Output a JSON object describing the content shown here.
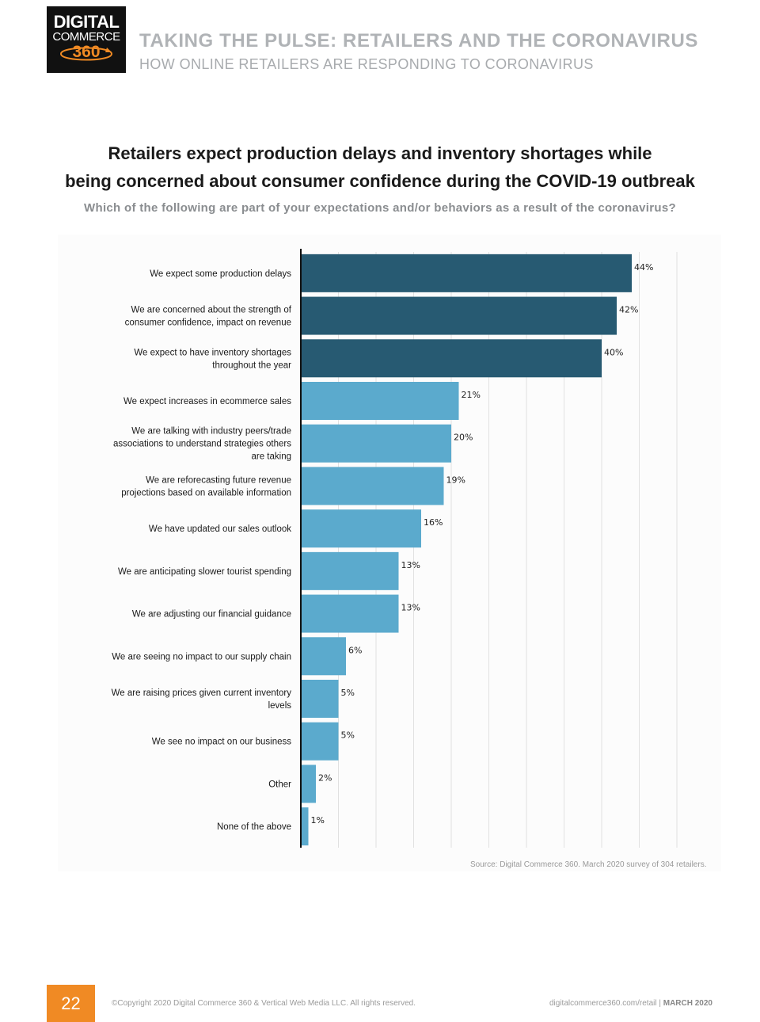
{
  "logo": {
    "line1": "DIGITAL",
    "line2": "COMMERCE",
    "line3": "360"
  },
  "header": {
    "title": "TAKING THE PULSE: RETAILERS AND THE CORONAVIRUS",
    "subtitle": "HOW ONLINE RETAILERS ARE RESPONDING TO CORONAVIRUS"
  },
  "colors": {
    "dark_bar": "#275a72",
    "light_bar": "#5baacd",
    "accent": "#f08a24"
  },
  "chart_data": {
    "type": "bar",
    "orientation": "horizontal",
    "title_line1": "Retailers expect production delays and inventory shortages while",
    "title_line2": "being concerned about consumer confidence during the COVID-19 outbreak",
    "question": "Which of the following are part of your expectations and/or behaviors as a result of the coronavirus?",
    "categories": [
      [
        "We expect some production delays"
      ],
      [
        "We are concerned about the strength of",
        "consumer confidence, impact on revenue"
      ],
      [
        "We expect to have inventory shortages",
        "throughout the year"
      ],
      [
        "We expect increases in ecommerce sales"
      ],
      [
        "We are talking with industry peers/trade",
        "associations to understand strategies others",
        "are taking"
      ],
      [
        "We are reforecasting future revenue",
        "projections based on available information"
      ],
      [
        "We have updated our sales outlook"
      ],
      [
        "We are anticipating slower tourist spending"
      ],
      [
        "We are adjusting our financial guidance"
      ],
      [
        "We are seeing no impact to our supply chain"
      ],
      [
        "We are raising prices given current inventory",
        "levels"
      ],
      [
        "We see no impact on our business"
      ],
      [
        "Other"
      ],
      [
        "None of the above"
      ]
    ],
    "values": [
      44,
      42,
      40,
      21,
      20,
      19,
      16,
      13,
      13,
      6,
      5,
      5,
      2,
      1
    ],
    "value_labels": [
      "44%",
      "42%",
      "40%",
      "21%",
      "20%",
      "19%",
      "16%",
      "13%",
      "13%",
      "6%",
      "5%",
      "5%",
      "2%",
      "1%"
    ],
    "highlighted_count": 3,
    "xlim": [
      0,
      50
    ],
    "grid_step": 5,
    "source": "Source: Digital Commerce 360. March 2020 survey of 304 retailers."
  },
  "footer": {
    "page_number": "22",
    "copyright": "©Copyright 2020 Digital Commerce 360 & Vertical Web Media LLC. All rights reserved.",
    "url": "digitalcommerce360.com/retail",
    "separator": " | ",
    "date": "MARCH 2020"
  }
}
